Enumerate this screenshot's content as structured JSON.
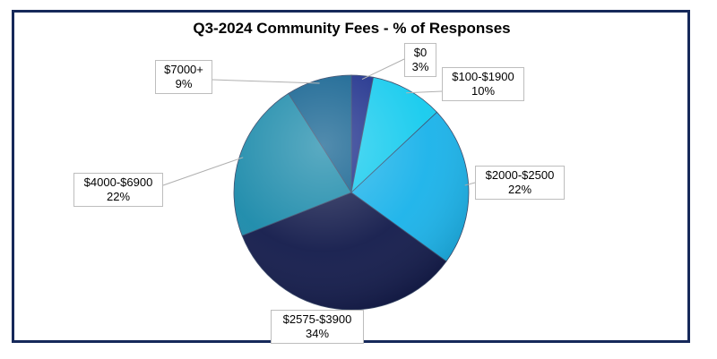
{
  "chart_data": {
    "type": "pie",
    "title": "Q3-2024 Community Fees - % of Responses",
    "slices": [
      {
        "label": "$0",
        "value": 3,
        "value_label": "3%",
        "color": "#1b2d8a"
      },
      {
        "label": "$100-$1900",
        "value": 10,
        "value_label": "10%",
        "color": "#16cbee"
      },
      {
        "label": "$2000-$2500",
        "value": 22,
        "value_label": "22%",
        "color": "#1bb3ea"
      },
      {
        "label": "$2575-$3900",
        "value": 34,
        "value_label": "34%",
        "color": "#141c4c"
      },
      {
        "label": "$4000-$6900",
        "value": 22,
        "value_label": "22%",
        "color": "#1b8aaa"
      },
      {
        "label": "$7000+",
        "value": 9,
        "value_label": "9%",
        "color": "#0f5f8e"
      }
    ],
    "legend": "none",
    "data_labels": "outside-with-leader-lines"
  }
}
